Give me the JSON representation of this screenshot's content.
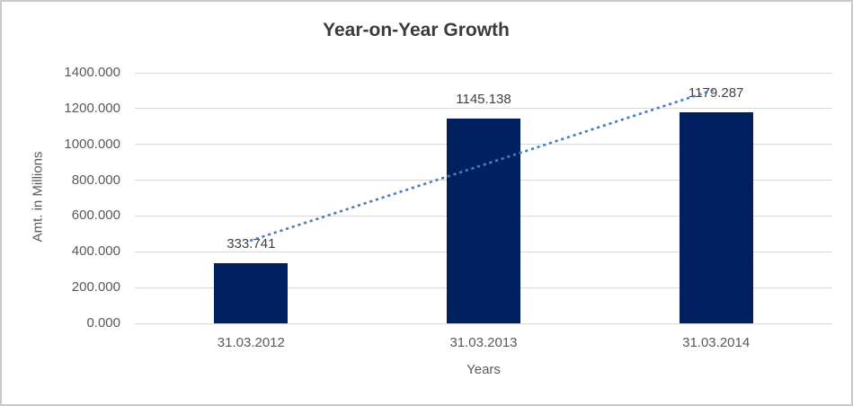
{
  "chart_data": {
    "type": "bar",
    "title": "Year-on-Year Growth",
    "xlabel": "Years",
    "ylabel": "Amt. in Millions",
    "categories": [
      "31.03.2012",
      "31.03.2013",
      "31.03.2014"
    ],
    "values": [
      333.741,
      1145.138,
      1179.287
    ],
    "data_labels": [
      "333.741",
      "1145.138",
      "1179.287"
    ],
    "ylim": [
      0,
      1400
    ],
    "ytick_step": 200,
    "ytick_labels": [
      "0.000",
      "200.000",
      "400.000",
      "600.000",
      "800.000",
      "1000.000",
      "1200.000",
      "1400.000"
    ],
    "grid": true,
    "legend": "none",
    "trendline": {
      "type": "linear",
      "style": "dotted",
      "start_value": 463.3,
      "end_value": 1308.8
    },
    "colors": {
      "bar": "#002060",
      "trendline": "#4a7ebb",
      "gridline": "#d9d9d9",
      "title_text": "#3b3b3b",
      "tick_text": "#595959",
      "data_label_text": "#404040",
      "border": "#c9c9c9",
      "background": "#ffffff"
    }
  }
}
